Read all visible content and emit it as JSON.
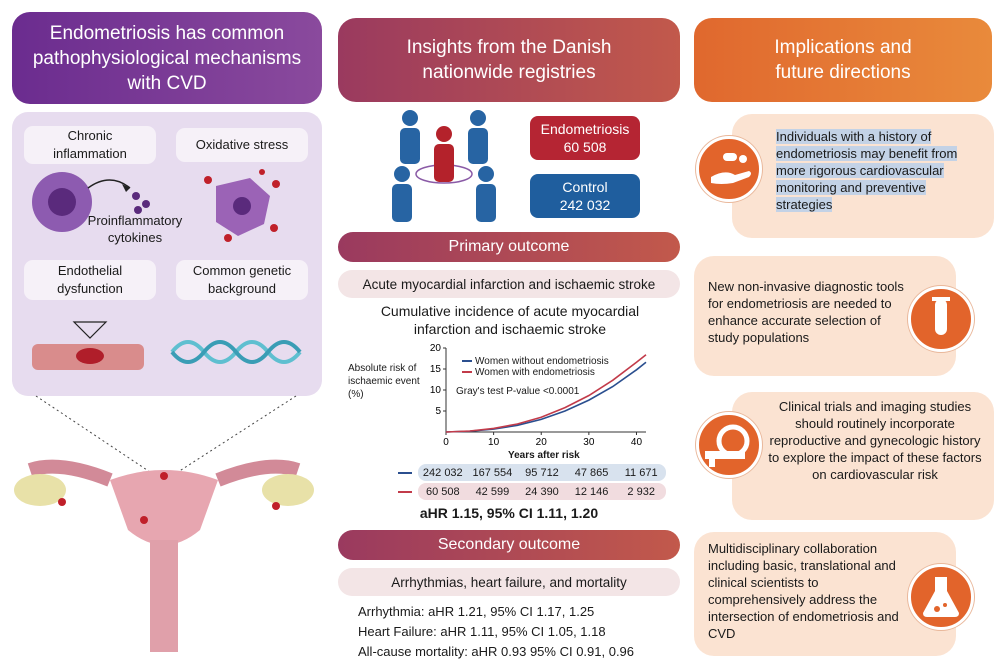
{
  "headers": {
    "left": "Endometriosis has common pathophysiological mechanisms with CVD",
    "middle": "Insights from the Danish nationwide registries",
    "right": "Implications and future directions"
  },
  "mechanisms": {
    "chronic_inflammation": "Chronic inflammation",
    "oxidative_stress": "Oxidative stress",
    "proinflammatory": "Proinflammatory cytokines",
    "endothelial": "Endothelial dysfunction",
    "genetic": "Common genetic background"
  },
  "cohorts": {
    "endometriosis_label": "Endometriosis",
    "endometriosis_n": "60 508",
    "control_label": "Control",
    "control_n": "242 032"
  },
  "primary": {
    "title": "Primary outcome",
    "subtitle": "Acute myocardial infarction and ischaemic stroke",
    "chart_title": "Cumulative incidence of acute myocardial infarction and ischaemic stroke",
    "ahr": "aHR 1.15, 95% CI 1.11, 1.20"
  },
  "chart_data": {
    "type": "line",
    "ylabel": "Absolute risk of ischaemic event (%)",
    "xlabel": "Years after risk",
    "xlim": [
      0,
      42
    ],
    "ylim": [
      0,
      20
    ],
    "x_ticks": [
      0,
      10,
      20,
      30,
      40
    ],
    "y_ticks": [
      5,
      10,
      15,
      20
    ],
    "annotation": "Gray's test P-value <0.0001",
    "legend_position": "top-left",
    "series": [
      {
        "name": "Women without endometriosis",
        "color": "#2b4f8f",
        "x": [
          0,
          5,
          10,
          15,
          20,
          25,
          30,
          35,
          40,
          42
        ],
        "y": [
          0,
          0.2,
          0.7,
          1.6,
          3.0,
          5.0,
          7.6,
          10.8,
          14.8,
          16.6
        ]
      },
      {
        "name": "Women with endometriosis",
        "color": "#c23b4a",
        "x": [
          0,
          5,
          10,
          15,
          20,
          25,
          30,
          35,
          40,
          42
        ],
        "y": [
          0,
          0.25,
          0.85,
          1.9,
          3.5,
          5.8,
          8.7,
          12.3,
          16.6,
          18.4
        ]
      }
    ],
    "risk_table": [
      {
        "color": "#2b4f8f",
        "values": [
          "242 032",
          "167 554",
          "95 712",
          "47 865",
          "11 671"
        ]
      },
      {
        "color": "#c23b4a",
        "values": [
          "60 508",
          "42 599",
          "24 390",
          "12 146",
          "2 932"
        ]
      }
    ]
  },
  "secondary": {
    "title": "Secondary outcome",
    "subtitle": "Arrhythmias, heart failure, and mortality",
    "lines": [
      "Arrhythmia: aHR 1.21, 95% CI 1.17, 1.25",
      "Heart Failure: aHR 1.11, 95% CI 1.05, 1.18",
      "All-cause mortality: aHR 0.93 95% CI 0.91, 0.96"
    ]
  },
  "implications": [
    "Individuals with a history of endometriosis may benefit from more rigorous cardiovascular monitoring and preventive strategies",
    "New non-invasive diagnostic tools for endometriosis are needed to enhance accurate selection of study populations",
    "Clinical trials and imaging studies should routinely incorporate reproductive and gynecologic history to explore the impact of these factors on cardiovascular risk",
    "Multidisciplinary collaboration including basic, translational and clinical scientists to comprehensively address the intersection of endometriosis and CVD"
  ],
  "icons": [
    "pill-hand-icon",
    "test-tube-icon",
    "ct-scanner-icon",
    "flask-icon",
    "people-icon",
    "cell-icon",
    "dna-icon",
    "artery-icon",
    "uterus-icon"
  ],
  "colors": {
    "purple": "#6b2c8f",
    "maroon": "#9a3a5f",
    "orange": "#e2642b",
    "blue": "#2b4f8f",
    "red": "#c23b4a"
  }
}
